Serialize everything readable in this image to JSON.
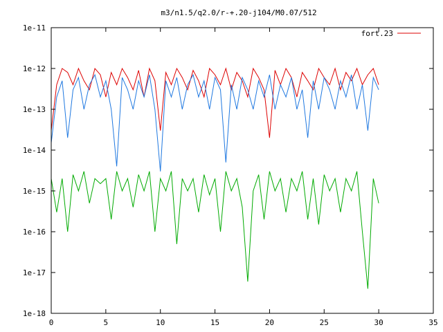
{
  "chart_data": {
    "type": "line",
    "title": "m3/n1.5/q2.0/r-+.20-j104/M0.07/512",
    "xlabel": "",
    "ylabel": "",
    "xlim": [
      0,
      35
    ],
    "ylim": [
      1e-18,
      1e-11
    ],
    "y_scale": "log",
    "x_ticks": [
      0,
      5,
      10,
      15,
      20,
      25,
      30,
      35
    ],
    "x_tick_labels": [
      "0",
      "5",
      "10",
      "15",
      "20",
      "25",
      "30",
      "35"
    ],
    "y_ticks": [
      1e-11,
      1e-12,
      1e-13,
      1e-14,
      1e-15,
      1e-16,
      1e-17,
      1e-18
    ],
    "y_tick_labels": [
      "1e-11",
      "1e-12",
      "1e-13",
      "1e-14",
      "1e-15",
      "1e-16",
      "1e-17",
      "1e-18"
    ],
    "grid": false,
    "legend": {
      "position": "top-right",
      "entries": [
        "fort.23"
      ]
    },
    "series": [
      {
        "name": "fort.23",
        "color": "#dd0000",
        "x": [
          0.0,
          0.5,
          1.0,
          1.5,
          2.0,
          2.5,
          3.0,
          3.5,
          4.0,
          4.5,
          5.0,
          5.5,
          6.0,
          6.5,
          7.0,
          7.5,
          8.0,
          8.5,
          9.0,
          9.5,
          10.0,
          10.5,
          11.0,
          11.5,
          12.0,
          12.5,
          13.0,
          13.5,
          14.0,
          14.5,
          15.0,
          15.5,
          16.0,
          16.5,
          17.0,
          17.5,
          18.0,
          18.5,
          19.0,
          19.5,
          20.0,
          20.5,
          21.0,
          21.5,
          22.0,
          22.5,
          23.0,
          23.5,
          24.0,
          24.5,
          25.0,
          25.5,
          26.0,
          26.5,
          27.0,
          27.5,
          28.0,
          28.5,
          29.0,
          29.5,
          30.0
        ],
        "y": [
          3e-14,
          4e-13,
          1e-12,
          8e-13,
          4e-13,
          1e-12,
          5e-13,
          3e-13,
          1e-12,
          7e-13,
          2e-13,
          8e-13,
          4e-13,
          1e-12,
          6e-13,
          3e-13,
          9e-13,
          2e-13,
          1e-12,
          5e-13,
          3e-14,
          8e-13,
          4e-13,
          1e-12,
          6e-13,
          3e-13,
          9e-13,
          5e-13,
          2e-13,
          1e-12,
          7e-13,
          4e-13,
          1e-12,
          3e-13,
          8e-13,
          5e-13,
          2e-13,
          1e-12,
          6e-13,
          3e-13,
          2e-14,
          9e-13,
          4e-13,
          1e-12,
          6e-13,
          2e-13,
          8e-13,
          5e-13,
          3e-13,
          1e-12,
          6e-13,
          4e-13,
          1e-12,
          3e-13,
          8e-13,
          5e-13,
          1e-12,
          4e-13,
          7e-13,
          1e-12,
          4e-13
        ]
      },
      {
        "name": "",
        "color": "#1f78e0",
        "x": [
          0.0,
          0.5,
          1.0,
          1.5,
          2.0,
          2.5,
          3.0,
          3.5,
          4.0,
          4.5,
          5.0,
          5.5,
          6.0,
          6.5,
          7.0,
          7.5,
          8.0,
          8.5,
          9.0,
          9.5,
          10.0,
          10.5,
          11.0,
          11.5,
          12.0,
          12.5,
          13.0,
          13.5,
          14.0,
          14.5,
          15.0,
          15.5,
          16.0,
          16.5,
          17.0,
          17.5,
          18.0,
          18.5,
          19.0,
          19.5,
          20.0,
          20.5,
          21.0,
          21.5,
          22.0,
          22.5,
          23.0,
          23.5,
          24.0,
          24.5,
          25.0,
          25.5,
          26.0,
          26.5,
          27.0,
          27.5,
          28.0,
          28.5,
          29.0,
          29.5,
          30.0
        ],
        "y": [
          1.5e-14,
          2e-13,
          5e-13,
          2e-14,
          3e-13,
          6e-13,
          1e-13,
          4e-13,
          7e-13,
          2e-13,
          5e-13,
          1e-13,
          4e-15,
          6e-13,
          3e-13,
          1e-13,
          5e-13,
          2e-13,
          7e-13,
          1e-13,
          3e-15,
          5e-13,
          2e-13,
          6e-13,
          1e-13,
          4e-13,
          7e-13,
          2e-13,
          5e-13,
          1e-13,
          6e-13,
          3e-13,
          5e-15,
          4e-13,
          1e-13,
          6e-13,
          3e-13,
          1e-13,
          5e-13,
          2e-13,
          7e-13,
          1e-13,
          4e-13,
          2e-13,
          6e-13,
          1e-13,
          3e-13,
          2e-14,
          5e-13,
          1e-13,
          6e-13,
          3e-13,
          1e-13,
          5e-13,
          2e-13,
          7e-13,
          1e-13,
          4e-13,
          3e-14,
          6e-13,
          3e-13
        ]
      },
      {
        "name": "",
        "color": "#00aa00",
        "x": [
          0.0,
          0.5,
          1.0,
          1.5,
          2.0,
          2.5,
          3.0,
          3.5,
          4.0,
          4.5,
          5.0,
          5.5,
          6.0,
          6.5,
          7.0,
          7.5,
          8.0,
          8.5,
          9.0,
          9.5,
          10.0,
          10.5,
          11.0,
          11.5,
          12.0,
          12.5,
          13.0,
          13.5,
          14.0,
          14.5,
          15.0,
          15.5,
          16.0,
          16.5,
          17.0,
          17.5,
          18.0,
          18.5,
          19.0,
          19.5,
          20.0,
          20.5,
          21.0,
          21.5,
          22.0,
          22.5,
          23.0,
          23.5,
          24.0,
          24.5,
          25.0,
          25.5,
          26.0,
          26.5,
          27.0,
          27.5,
          28.0,
          28.5,
          29.0,
          29.5,
          30.0
        ],
        "y": [
          2e-15,
          3e-16,
          2e-15,
          1e-16,
          2.5e-15,
          1e-15,
          3e-15,
          5e-16,
          2e-15,
          1.5e-15,
          2e-15,
          2e-16,
          3e-15,
          1e-15,
          2e-15,
          4e-16,
          2.5e-15,
          1e-15,
          3e-15,
          1e-16,
          2e-15,
          1e-15,
          3e-15,
          5e-17,
          2e-15,
          1e-15,
          2e-15,
          3e-16,
          2.5e-15,
          8e-16,
          2e-15,
          1e-16,
          3e-15,
          1e-15,
          2e-15,
          4e-16,
          6e-18,
          1e-15,
          2.5e-15,
          2e-16,
          3e-15,
          1e-15,
          2e-15,
          3e-16,
          2e-15,
          1e-15,
          3e-15,
          2e-16,
          2e-15,
          1.5e-16,
          2.5e-15,
          1e-15,
          2e-15,
          3e-16,
          2e-15,
          1e-15,
          3e-15,
          1e-16,
          4e-18,
          2e-15,
          5e-16
        ]
      }
    ]
  }
}
